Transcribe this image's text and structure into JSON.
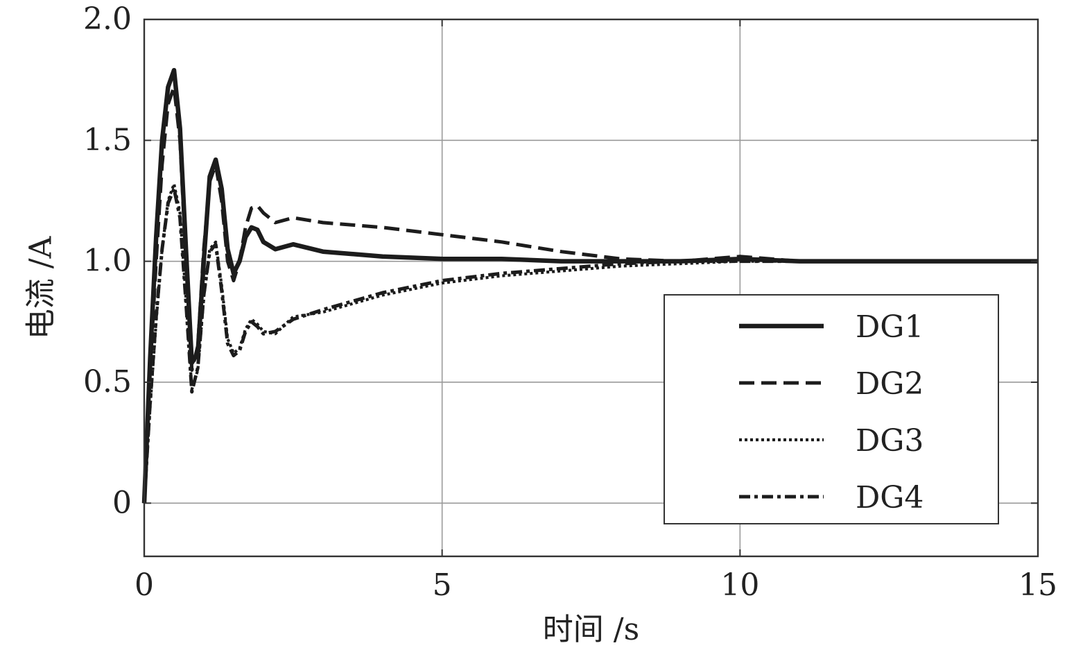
{
  "chart_data": {
    "type": "line",
    "xlabel": "时间 /s",
    "ylabel": "电流 /A",
    "xlim": [
      0,
      15
    ],
    "ylim": [
      -0.22,
      2.0
    ],
    "xticks": [
      0,
      5,
      10,
      15
    ],
    "xtick_labels": [
      "0",
      "5",
      "10",
      "15"
    ],
    "yticks": [
      0,
      0.5,
      1.0,
      1.5,
      2.0
    ],
    "ytick_labels": [
      "0",
      "0.5",
      "1.0",
      "1.5",
      "2.0"
    ],
    "grid": true,
    "legend_position": "bottom-right",
    "line_color": "#1c1c1c",
    "series": [
      {
        "name": "DG1",
        "style": "solid",
        "x": [
          0,
          0.1,
          0.2,
          0.3,
          0.4,
          0.5,
          0.6,
          0.7,
          0.8,
          0.9,
          1.0,
          1.1,
          1.2,
          1.3,
          1.4,
          1.5,
          1.6,
          1.7,
          1.8,
          1.9,
          2.0,
          2.2,
          2.5,
          3,
          4,
          5,
          6,
          7,
          8,
          9,
          10,
          11,
          12,
          13,
          14,
          15
        ],
        "y": [
          0,
          0.6,
          1.1,
          1.5,
          1.72,
          1.79,
          1.55,
          1.05,
          0.58,
          0.62,
          1.0,
          1.35,
          1.42,
          1.3,
          1.05,
          0.95,
          1.0,
          1.1,
          1.14,
          1.13,
          1.08,
          1.05,
          1.07,
          1.04,
          1.02,
          1.01,
          1.01,
          1.0,
          1.0,
          1.0,
          1.01,
          1.0,
          1.0,
          1.0,
          1.0,
          1.0
        ]
      },
      {
        "name": "DG2",
        "style": "dashed",
        "x": [
          0,
          0.1,
          0.2,
          0.3,
          0.4,
          0.5,
          0.6,
          0.7,
          0.8,
          0.9,
          1.0,
          1.1,
          1.2,
          1.3,
          1.4,
          1.5,
          1.6,
          1.7,
          1.8,
          1.9,
          2.0,
          2.2,
          2.5,
          3,
          4,
          5,
          6,
          7,
          8,
          9,
          10,
          11,
          12,
          13,
          14,
          15
        ],
        "y": [
          0,
          0.55,
          1.0,
          1.4,
          1.65,
          1.72,
          1.5,
          1.0,
          0.55,
          0.65,
          1.05,
          1.33,
          1.4,
          1.25,
          1.0,
          0.92,
          1.0,
          1.14,
          1.22,
          1.23,
          1.2,
          1.16,
          1.18,
          1.16,
          1.14,
          1.11,
          1.08,
          1.04,
          1.01,
          1.0,
          1.02,
          1.0,
          1.0,
          1.0,
          1.0,
          1.0
        ]
      },
      {
        "name": "DG3",
        "style": "dotted",
        "x": [
          0,
          0.1,
          0.2,
          0.3,
          0.4,
          0.5,
          0.6,
          0.7,
          0.8,
          0.9,
          1.0,
          1.1,
          1.2,
          1.3,
          1.4,
          1.5,
          1.6,
          1.7,
          1.8,
          1.9,
          2.0,
          2.2,
          2.5,
          3,
          4,
          5,
          6,
          7,
          8,
          9,
          10,
          11,
          12,
          13,
          14,
          15
        ],
        "y": [
          0,
          0.4,
          0.75,
          1.05,
          1.25,
          1.32,
          1.2,
          0.85,
          0.47,
          0.55,
          0.85,
          1.05,
          1.08,
          0.9,
          0.68,
          0.62,
          0.64,
          0.72,
          0.76,
          0.74,
          0.71,
          0.7,
          0.77,
          0.79,
          0.86,
          0.91,
          0.94,
          0.96,
          0.98,
          0.99,
          1.0,
          1.0,
          1.0,
          1.0,
          1.0,
          1.0
        ]
      },
      {
        "name": "DG4",
        "style": "dash-dot",
        "x": [
          0,
          0.1,
          0.2,
          0.3,
          0.4,
          0.5,
          0.6,
          0.7,
          0.8,
          0.9,
          1.0,
          1.1,
          1.2,
          1.3,
          1.4,
          1.5,
          1.6,
          1.7,
          1.8,
          1.9,
          2.0,
          2.2,
          2.5,
          3,
          4,
          5,
          6,
          7,
          8,
          9,
          10,
          11,
          12,
          13,
          14,
          15
        ],
        "y": [
          0,
          0.42,
          0.77,
          1.05,
          1.24,
          1.3,
          1.18,
          0.83,
          0.46,
          0.56,
          0.86,
          1.04,
          1.07,
          0.88,
          0.66,
          0.61,
          0.63,
          0.71,
          0.75,
          0.73,
          0.7,
          0.71,
          0.76,
          0.8,
          0.87,
          0.92,
          0.95,
          0.97,
          0.99,
          1.0,
          1.0,
          1.0,
          1.0,
          1.0,
          1.0,
          1.0
        ]
      }
    ]
  }
}
